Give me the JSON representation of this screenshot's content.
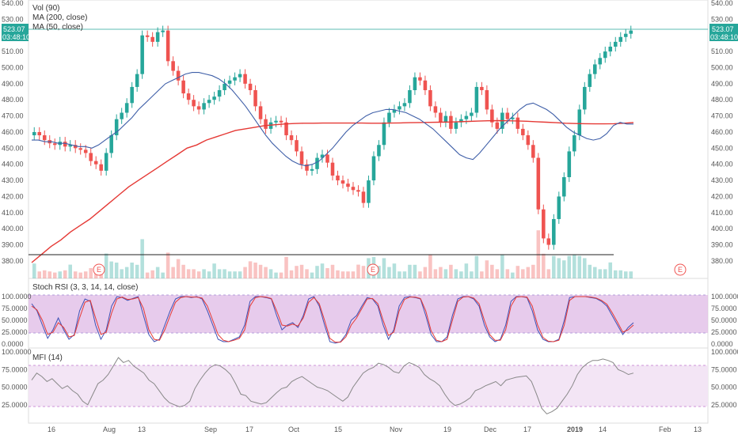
{
  "chart_data": [
    {
      "type": "candlestick",
      "legend": [
        "Vol (90)",
        "MA (200, close)",
        "MA (50, close)"
      ],
      "price_label": "523.07",
      "countdown_label": "03:48:10",
      "ylim": [
        375,
        540
      ],
      "yticks": [
        "540.00",
        "530.00",
        "520.00",
        "510.00",
        "500.00",
        "490.00",
        "480.00",
        "470.00",
        "460.00",
        "450.00",
        "440.00",
        "430.00",
        "420.00",
        "410.00",
        "400.00",
        "390.00",
        "380.00"
      ],
      "current_price": 523.07,
      "support_level": 387,
      "earnings_markers": [
        "E",
        "E",
        "E"
      ],
      "close_series": [
        460,
        458,
        455,
        453,
        452,
        454,
        451,
        452,
        450,
        449,
        447,
        442,
        440,
        436,
        447,
        458,
        468,
        472,
        478,
        488,
        496,
        520,
        519,
        516,
        522,
        523,
        504,
        498,
        492,
        484,
        480,
        476,
        474,
        478,
        480,
        482,
        486,
        490,
        492,
        494,
        496,
        490,
        486,
        476,
        468,
        462,
        466,
        467,
        466,
        458,
        455,
        448,
        440,
        436,
        437,
        444,
        446,
        441,
        433,
        430,
        428,
        426,
        424,
        423,
        416,
        430,
        445,
        452,
        466,
        472,
        474,
        476,
        478,
        486,
        494,
        492,
        486,
        476,
        472,
        466,
        470,
        462,
        466,
        468,
        470,
        472,
        488,
        486,
        474,
        466,
        462,
        472,
        468,
        469,
        462,
        458,
        452,
        444,
        412,
        394,
        390,
        406,
        420,
        432,
        448,
        458,
        474,
        488,
        496,
        502,
        506,
        510,
        513,
        516,
        519,
        521,
        523
      ],
      "ma50_series": [
        455,
        455,
        454,
        454,
        453,
        453,
        452,
        451,
        451,
        450,
        452,
        455,
        458,
        461,
        465,
        469,
        474,
        478,
        482,
        486,
        490,
        492,
        494,
        496,
        497,
        497,
        496,
        495,
        493,
        490,
        486,
        481,
        476,
        470,
        464,
        458,
        453,
        449,
        445,
        442,
        440,
        439,
        440,
        442,
        446,
        450,
        455,
        460,
        464,
        467,
        470,
        472,
        473,
        474,
        474,
        473,
        472,
        470,
        468,
        465,
        462,
        458,
        454,
        450,
        446,
        444,
        443,
        447,
        452,
        457,
        462,
        466,
        470,
        474,
        477,
        478,
        476,
        474,
        471,
        467,
        463,
        460,
        458,
        456,
        455,
        456,
        459,
        464,
        466,
        465,
        465
      ],
      "ma200_series": [
        379,
        384,
        389,
        393,
        398,
        402,
        406,
        411,
        416,
        421,
        426,
        430,
        434,
        438,
        442,
        446,
        450,
        452,
        455,
        457,
        459,
        461,
        462,
        463,
        464,
        464.5,
        465,
        465.3,
        465.5,
        465.5,
        465.6,
        465.6,
        465.6,
        465.6,
        465.6,
        465.5,
        465.5,
        465.6,
        465.7,
        465.8,
        465.9,
        466,
        466.1,
        466.2,
        466.4,
        466.6,
        466.8,
        467,
        467.1,
        467,
        466.9,
        466.7,
        466.4,
        466.1,
        465.8,
        465.5,
        465.3,
        465.2,
        465.1,
        465.1,
        465.2,
        465.5,
        465.9
      ],
      "xticks": [
        "16",
        "Aug",
        "13",
        "Sep",
        "17",
        "Oct",
        "15",
        "Nov",
        "19",
        "Dec",
        "17",
        "2019",
        "14",
        "Feb",
        "13"
      ]
    },
    {
      "type": "line",
      "title": "Stoch RSI (3, 3, 14, 14, close)",
      "yticks": [
        "100.0000",
        "75.0000",
        "50.0000",
        "25.0000",
        "0.0000"
      ],
      "ylim": [
        0,
        100
      ],
      "band": [
        20,
        80
      ],
      "k_series": [
        85,
        70,
        40,
        12,
        30,
        55,
        30,
        10,
        20,
        70,
        95,
        90,
        40,
        10,
        30,
        80,
        100,
        98,
        92,
        96,
        100,
        60,
        20,
        5,
        10,
        40,
        70,
        95,
        100,
        100,
        98,
        100,
        95,
        70,
        40,
        10,
        5,
        5,
        10,
        15,
        40,
        90,
        100,
        100,
        98,
        95,
        60,
        30,
        40,
        45,
        35,
        60,
        95,
        100,
        80,
        40,
        5,
        2,
        5,
        20,
        50,
        60,
        80,
        98,
        95,
        80,
        40,
        10,
        30,
        80,
        98,
        100,
        98,
        95,
        60,
        20,
        5,
        5,
        15,
        60,
        95,
        100,
        100,
        95,
        80,
        40,
        15,
        5,
        10,
        40,
        90,
        100,
        100,
        98,
        70,
        30,
        10,
        5,
        5,
        10,
        50,
        98,
        100,
        100,
        100,
        98,
        96,
        90,
        80,
        60,
        40,
        20,
        35,
        45
      ],
      "d_series": [
        80,
        72,
        50,
        20,
        25,
        45,
        35,
        15,
        18,
        55,
        88,
        92,
        55,
        20,
        25,
        65,
        95,
        99,
        94,
        95,
        98,
        75,
        30,
        10,
        8,
        30,
        60,
        88,
        98,
        100,
        99,
        99,
        97,
        80,
        50,
        20,
        8,
        5,
        8,
        12,
        30,
        80,
        98,
        100,
        99,
        96,
        70,
        40,
        38,
        42,
        38,
        55,
        88,
        98,
        85,
        50,
        12,
        4,
        4,
        15,
        40,
        55,
        75,
        95,
        96,
        85,
        50,
        18,
        25,
        70,
        94,
        99,
        99,
        96,
        70,
        28,
        8,
        5,
        10,
        50,
        90,
        99,
        100,
        97,
        85,
        50,
        20,
        8,
        8,
        30,
        80,
        99,
        100,
        99,
        80,
        40,
        14,
        6,
        5,
        8,
        40,
        92,
        100,
        100,
        100,
        99,
        97,
        92,
        84,
        66,
        46,
        25,
        30,
        40
      ]
    },
    {
      "type": "line",
      "title": "MFI (14)",
      "yticks": [
        "100.0000",
        "75.0000",
        "50.0000",
        "25.0000"
      ],
      "ylim": [
        0,
        100
      ],
      "band": [
        20,
        80
      ],
      "series": [
        60,
        70,
        65,
        58,
        62,
        55,
        48,
        52,
        45,
        40,
        30,
        25,
        40,
        55,
        60,
        68,
        80,
        92,
        85,
        88,
        80,
        75,
        70,
        60,
        55,
        45,
        35,
        28,
        25,
        22,
        24,
        30,
        48,
        60,
        70,
        78,
        82,
        80,
        75,
        68,
        55,
        40,
        38,
        30,
        28,
        26,
        28,
        35,
        42,
        48,
        50,
        58,
        62,
        65,
        60,
        55,
        50,
        48,
        45,
        40,
        35,
        30,
        36,
        50,
        60,
        70,
        75,
        78,
        84,
        82,
        78,
        72,
        70,
        80,
        85,
        82,
        78,
        68,
        62,
        58,
        52,
        40,
        30,
        24,
        26,
        30,
        35,
        45,
        48,
        52,
        55,
        58,
        52,
        60,
        62,
        64,
        65,
        66,
        58,
        40,
        20,
        12,
        15,
        20,
        30,
        40,
        52,
        68,
        78,
        84,
        88,
        88,
        90,
        88,
        85,
        75,
        72,
        68,
        70
      ]
    }
  ],
  "colors": {
    "up": "#26a69a",
    "down": "#ef5350",
    "ma50": "#3f5fa8",
    "ma200": "#e53935",
    "price_line": "#26a69a",
    "stoch_k": "#3f51b5",
    "stoch_d": "#e53935",
    "band_fill": "#e1bee7",
    "mfi_fill": "#f3e5f5",
    "mfi_line": "#888888"
  }
}
